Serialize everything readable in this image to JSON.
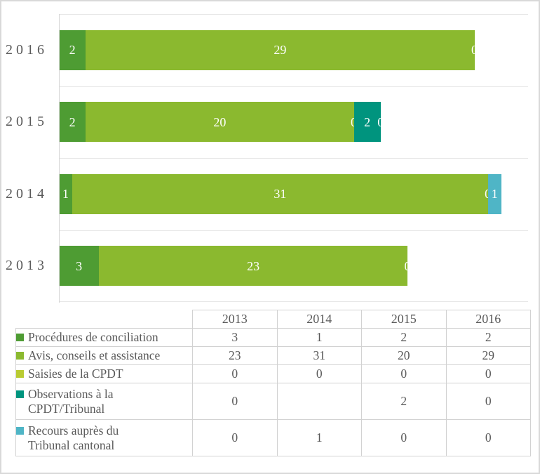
{
  "page": {
    "background": "#ffffff",
    "frame_border_color": "#d9d9d9",
    "text_color": "#595959",
    "gridline_color": "#e7e7e7",
    "axis_line_color": "#d6d6d6"
  },
  "chart_data": {
    "type": "bar",
    "variant": "horizontal-stacked",
    "title": "",
    "xlabel": "",
    "ylabel": "",
    "categories_top_to_bottom": [
      "2016",
      "2015",
      "2014",
      "2013"
    ],
    "xlim": [
      0,
      35
    ],
    "grid": "horizontal category separator lines, left axis line, no x-axis ticks",
    "value_label_color": "#ffffff",
    "legend_position": "data table below chart",
    "series": [
      {
        "name": "Procédures de conciliation",
        "color": "#4e9c33",
        "values_by_year": {
          "2013": 3,
          "2014": 1,
          "2015": 2,
          "2016": 2
        }
      },
      {
        "name": "Avis, conseils et assistance",
        "color": "#8bb92f",
        "values_by_year": {
          "2013": 23,
          "2014": 31,
          "2015": 20,
          "2016": 29
        }
      },
      {
        "name": "Saisies de la CPDT",
        "color": "#b9cb32",
        "values_by_year": {
          "2013": 0,
          "2014": 0,
          "2015": 0,
          "2016": 0
        }
      },
      {
        "name": "Observations à la CPDT/Tribunal",
        "color": "#00947e",
        "values_by_year": {
          "2013": 0,
          "2014": null,
          "2015": 2,
          "2016": 0
        }
      },
      {
        "name": "Recours auprès du Tribunal cantonal",
        "color": "#4fb5c6",
        "values_by_year": {
          "2013": 0,
          "2014": 1,
          "2015": 0,
          "2016": 0
        }
      }
    ]
  },
  "table": {
    "columns": [
      "2013",
      "2014",
      "2015",
      "2016"
    ],
    "rows": [
      {
        "label": "Procédures de conciliation",
        "swatch_color": "#4e9c33",
        "values": [
          "3",
          "1",
          "2",
          "2"
        ]
      },
      {
        "label": "Avis, conseils et assistance",
        "swatch_color": "#8bb92f",
        "values": [
          "23",
          "31",
          "20",
          "29"
        ]
      },
      {
        "label": "Saisies de la CPDT",
        "swatch_color": "#b9cb32",
        "values": [
          "0",
          "0",
          "0",
          "0"
        ]
      },
      {
        "label": "Observations à la\nCPDT/Tribunal",
        "swatch_color": "#00947e",
        "values": [
          "0",
          "",
          "2",
          "0"
        ]
      },
      {
        "label": "Recours auprès du\nTribunal cantonal",
        "swatch_color": "#4fb5c6",
        "values": [
          "0",
          "1",
          "0",
          "0"
        ]
      }
    ]
  }
}
